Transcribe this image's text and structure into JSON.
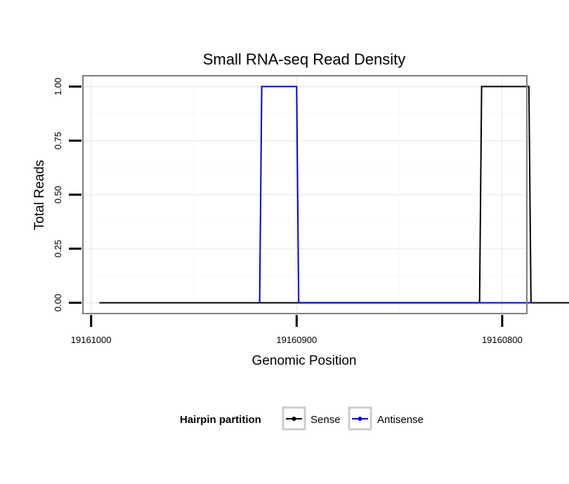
{
  "chart_data": {
    "type": "line",
    "title": "Small RNA-seq Read Density",
    "xlabel": "Genomic Position",
    "ylabel": "Total Reads",
    "x_reversed": true,
    "xlim": [
      19161004,
      19160788
    ],
    "ylim": [
      -0.05,
      1.05
    ],
    "x_ticks": [
      19161000,
      19160900,
      19160800
    ],
    "x_tick_labels": [
      "19161000",
      "19160900",
      "19160800"
    ],
    "y_ticks": [
      0,
      0.25,
      0.5,
      0.75,
      1
    ],
    "y_tick_labels": [
      "0.00",
      "0.25",
      "0.50",
      "0.75",
      "1.00"
    ],
    "grid": true,
    "legend": {
      "title": "Hairpin partition",
      "position": "bottom"
    },
    "series": [
      {
        "name": "Sense",
        "color": "#000000",
        "x": [
          19160996,
          19160811,
          19160810,
          19160787,
          19160786,
          19160766
        ],
        "y": [
          0,
          0,
          1,
          1,
          0,
          0
        ]
      },
      {
        "name": "Antisense",
        "color": "#0000ee",
        "x": [
          19160918,
          19160917,
          19160900,
          19160899,
          19160811,
          19160810,
          19160787,
          19160786
        ],
        "y": [
          0,
          1,
          1,
          0,
          0,
          0,
          0,
          0
        ]
      }
    ]
  }
}
